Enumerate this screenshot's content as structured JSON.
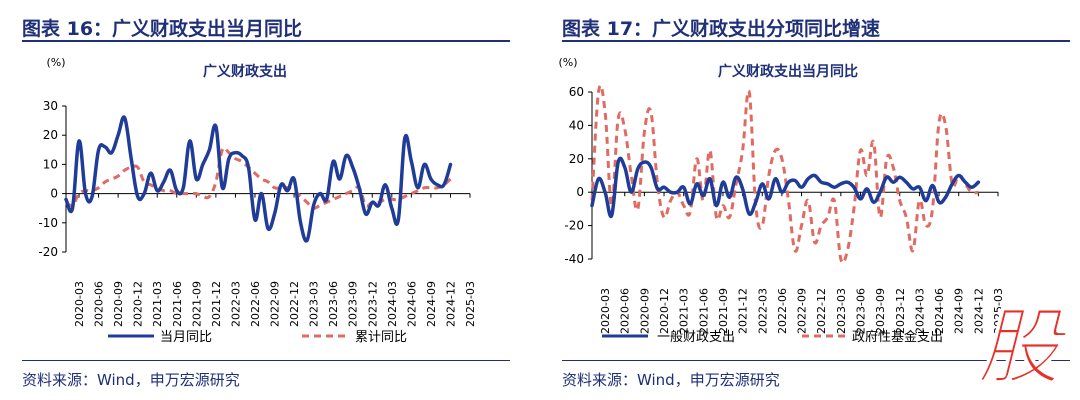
{
  "colors": {
    "navy": "#1f3c99",
    "salmon": "#e06b63",
    "title": "#1f2f78",
    "stamp": "#e8302a"
  },
  "left": {
    "figure_title": "图表 16：广义财政支出当月同比",
    "source": "资料来源：Wind，申万宏源研究"
  },
  "right": {
    "figure_title": "图表 17：广义财政支出分项同比增速",
    "source": "资料来源：Wind，申万宏源研究"
  },
  "stamp_text": "股",
  "chart_data": [
    {
      "type": "line",
      "title": "广义财政支出",
      "unit_label": "(%)",
      "ylim": [
        -20,
        30
      ],
      "yticks": [
        30,
        20,
        10,
        0,
        -10,
        -20
      ],
      "x_tick_labels": [
        "2020-03",
        "2020-06",
        "2020-09",
        "2020-12",
        "2021-03",
        "2021-06",
        "2021-09",
        "2021-12",
        "2022-03",
        "2022-06",
        "2022-09",
        "2022-12",
        "2023-03",
        "2023-06",
        "2023-09",
        "2023-12",
        "2024-03",
        "2024-06",
        "2024-09",
        "2024-12",
        "2025-03"
      ],
      "x_start": "2020-01",
      "x_end": "2025-03",
      "legend_position": "bottom",
      "series": [
        {
          "name": "当月同比",
          "style": "solid",
          "color": "#1f3c99",
          "values": [
            -2,
            -5,
            18,
            0,
            -1,
            15,
            16,
            14,
            20,
            26,
            12,
            -1,
            0,
            7,
            1,
            4,
            8,
            1,
            2,
            18,
            5,
            10,
            15,
            23,
            2,
            12,
            14,
            13,
            9,
            -9,
            0,
            -12,
            -7,
            3,
            1,
            5,
            -10,
            -16,
            -4,
            0,
            -2,
            11,
            5,
            13,
            9,
            2,
            -7,
            -3,
            -4,
            3,
            -5,
            -9,
            19,
            11,
            2,
            10,
            5,
            3,
            3,
            10
          ]
        },
        {
          "name": "累计同比",
          "style": "dashed",
          "color": "#e06b63",
          "values": [
            -3,
            -4,
            0,
            1,
            1,
            2,
            4,
            5,
            6,
            8,
            9,
            9,
            4,
            3,
            2,
            1,
            1,
            0,
            0,
            0,
            0,
            -1,
            -1,
            4,
            15,
            14,
            12,
            11,
            9,
            7,
            5,
            4,
            2,
            2,
            2,
            1,
            -1,
            -3,
            -5,
            -4,
            -3,
            -2,
            -1,
            0,
            1,
            2,
            -4,
            -3,
            -3,
            -2,
            -2,
            -2,
            -1,
            0,
            1,
            2,
            2,
            2,
            3,
            5
          ]
        }
      ]
    },
    {
      "type": "line",
      "title": "广义财政支出当月同比",
      "unit_label": "(%)",
      "ylim": [
        -40,
        60
      ],
      "yticks": [
        60,
        40,
        20,
        0,
        -20,
        -40
      ],
      "x_tick_labels": [
        "2020-03",
        "2020-06",
        "2020-09",
        "2020-12",
        "2021-03",
        "2021-06",
        "2021-09",
        "2021-12",
        "2022-03",
        "2022-06",
        "2022-09",
        "2022-12",
        "2023-03",
        "2023-06",
        "2023-09",
        "2023-12",
        "2024-03",
        "2024-06",
        "2024-09",
        "2024-12",
        "2025-03"
      ],
      "x_start": "2020-01",
      "x_end": "2025-03",
      "legend_position": "bottom",
      "series": [
        {
          "name": "一般财政支出",
          "style": "solid",
          "color": "#1f3c99",
          "values": [
            -8,
            8,
            0,
            -14,
            18,
            15,
            0,
            14,
            18,
            15,
            2,
            3,
            0,
            0,
            3,
            -7,
            5,
            -2,
            8,
            -8,
            6,
            -3,
            9,
            2,
            -13,
            -6,
            5,
            -4,
            8,
            0,
            6,
            7,
            3,
            8,
            10,
            6,
            5,
            3,
            5,
            6,
            3,
            -4,
            2,
            -6,
            0,
            9,
            6,
            9,
            6,
            2,
            3,
            -5,
            4,
            -6,
            -3,
            5,
            10,
            6,
            3,
            6
          ]
        },
        {
          "name": "政府性基金支出",
          "style": "dashed",
          "color": "#e06b63",
          "values": [
            -5,
            60,
            48,
            -8,
            44,
            38,
            10,
            -10,
            36,
            48,
            5,
            -15,
            -5,
            0,
            -8,
            -12,
            20,
            -5,
            25,
            -15,
            -8,
            -15,
            5,
            25,
            60,
            -8,
            -20,
            10,
            25,
            20,
            -5,
            -35,
            -20,
            -5,
            -30,
            -20,
            -15,
            -5,
            -40,
            -35,
            -10,
            25,
            10,
            30,
            -15,
            20,
            15,
            -5,
            -15,
            -35,
            -5,
            -20,
            -10,
            42,
            40,
            5,
            10,
            5,
            0,
            0
          ]
        }
      ]
    }
  ]
}
